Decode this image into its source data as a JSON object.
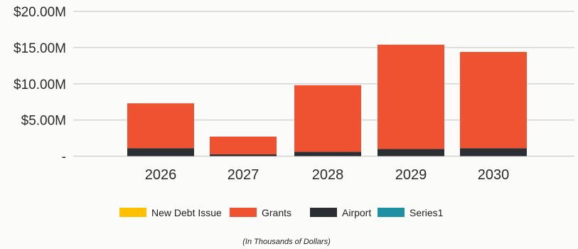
{
  "chart_data": {
    "type": "bar",
    "stacked": true,
    "categories": [
      "2026",
      "2027",
      "2028",
      "2029",
      "2030"
    ],
    "series": [
      {
        "name": "New Debt Issue",
        "color": "#ffc000",
        "values": [
          0,
          0,
          0,
          0,
          0
        ]
      },
      {
        "name": "Grants",
        "color": "#ee5230",
        "values": [
          6.2,
          2.45,
          9.2,
          14.4,
          13.3
        ]
      },
      {
        "name": "Airport",
        "color": "#2b2f33",
        "values": [
          1.1,
          0.25,
          0.6,
          1.0,
          1.1
        ]
      },
      {
        "name": "Series1",
        "color": "#1f8fa3",
        "values": [
          0,
          0,
          0,
          0,
          0
        ]
      }
    ],
    "ylim": [
      0,
      20
    ],
    "yticks": [
      {
        "value": 0,
        "label": "-"
      },
      {
        "value": 5,
        "label": "$5.00M"
      },
      {
        "value": 10,
        "label": "$10.00M"
      },
      {
        "value": 15,
        "label": "$15.00M"
      },
      {
        "value": 20,
        "label": "$20.00M"
      }
    ],
    "grid": true,
    "legend_position": "bottom",
    "note": "(In Thousands of Dollars)"
  }
}
